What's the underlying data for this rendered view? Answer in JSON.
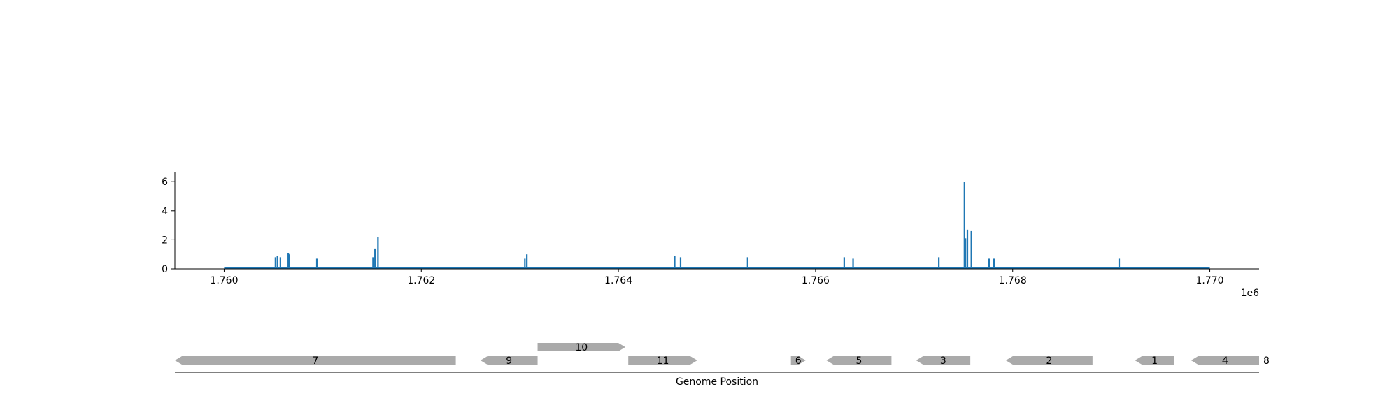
{
  "chart_data": {
    "type": "bar",
    "title": "",
    "xlabel": "",
    "ylabel": "",
    "offset_text": "1e6",
    "xlim": [
      1759500,
      1770500
    ],
    "ylim": [
      0,
      6.6
    ],
    "x_ticks": [
      1760000,
      1762000,
      1764000,
      1766000,
      1768000,
      1770000
    ],
    "x_tick_labels": [
      "1.760",
      "1.762",
      "1.764",
      "1.766",
      "1.768",
      "1.770"
    ],
    "y_ticks": [
      0,
      2,
      4,
      6
    ],
    "y_tick_labels": [
      "0",
      "2",
      "4",
      "6"
    ],
    "baseline": {
      "x": [
        1760000,
        1770000
      ],
      "y": 0
    },
    "color": "#1f77b4",
    "x": [
      1760520,
      1760540,
      1760570,
      1760650,
      1760660,
      1760940,
      1761510,
      1761530,
      1761560,
      1763050,
      1763070,
      1764570,
      1764630,
      1765310,
      1766290,
      1766380,
      1767250,
      1767510,
      1767520,
      1767540,
      1767580,
      1767760,
      1767810,
      1769080
    ],
    "values": [
      0.8,
      0.9,
      0.8,
      1.1,
      1.0,
      0.7,
      0.8,
      1.4,
      2.2,
      0.7,
      1.0,
      0.9,
      0.8,
      0.8,
      0.8,
      0.7,
      0.8,
      6.0,
      2.1,
      2.7,
      2.6,
      0.7,
      0.7,
      0.7
    ]
  },
  "gene_track": {
    "xlabel": "Genome Position",
    "color": "#aaaaaa",
    "genes": [
      {
        "label": "7",
        "start": 1759500,
        "end": 1762350,
        "strand": "-",
        "row": 0
      },
      {
        "label": "9",
        "start": 1762600,
        "end": 1763180,
        "strand": "-",
        "row": 0
      },
      {
        "label": "10",
        "start": 1763180,
        "end": 1764070,
        "strand": "+",
        "row": 1
      },
      {
        "label": "11",
        "start": 1764100,
        "end": 1764800,
        "strand": "+",
        "row": 0
      },
      {
        "label": "6",
        "start": 1765750,
        "end": 1765900,
        "strand": "+",
        "row": 0
      },
      {
        "label": "5",
        "start": 1766110,
        "end": 1766770,
        "strand": "-",
        "row": 0
      },
      {
        "label": "3",
        "start": 1767020,
        "end": 1767570,
        "strand": "-",
        "row": 0
      },
      {
        "label": "2",
        "start": 1767930,
        "end": 1768810,
        "strand": "-",
        "row": 0
      },
      {
        "label": "1",
        "start": 1769240,
        "end": 1769640,
        "strand": "-",
        "row": 0
      },
      {
        "label": "4",
        "start": 1769810,
        "end": 1770500,
        "strand": "-",
        "row": 0
      },
      {
        "label": "8",
        "start": 1770500,
        "end": 1770600,
        "strand": "+",
        "row": 0
      }
    ]
  }
}
